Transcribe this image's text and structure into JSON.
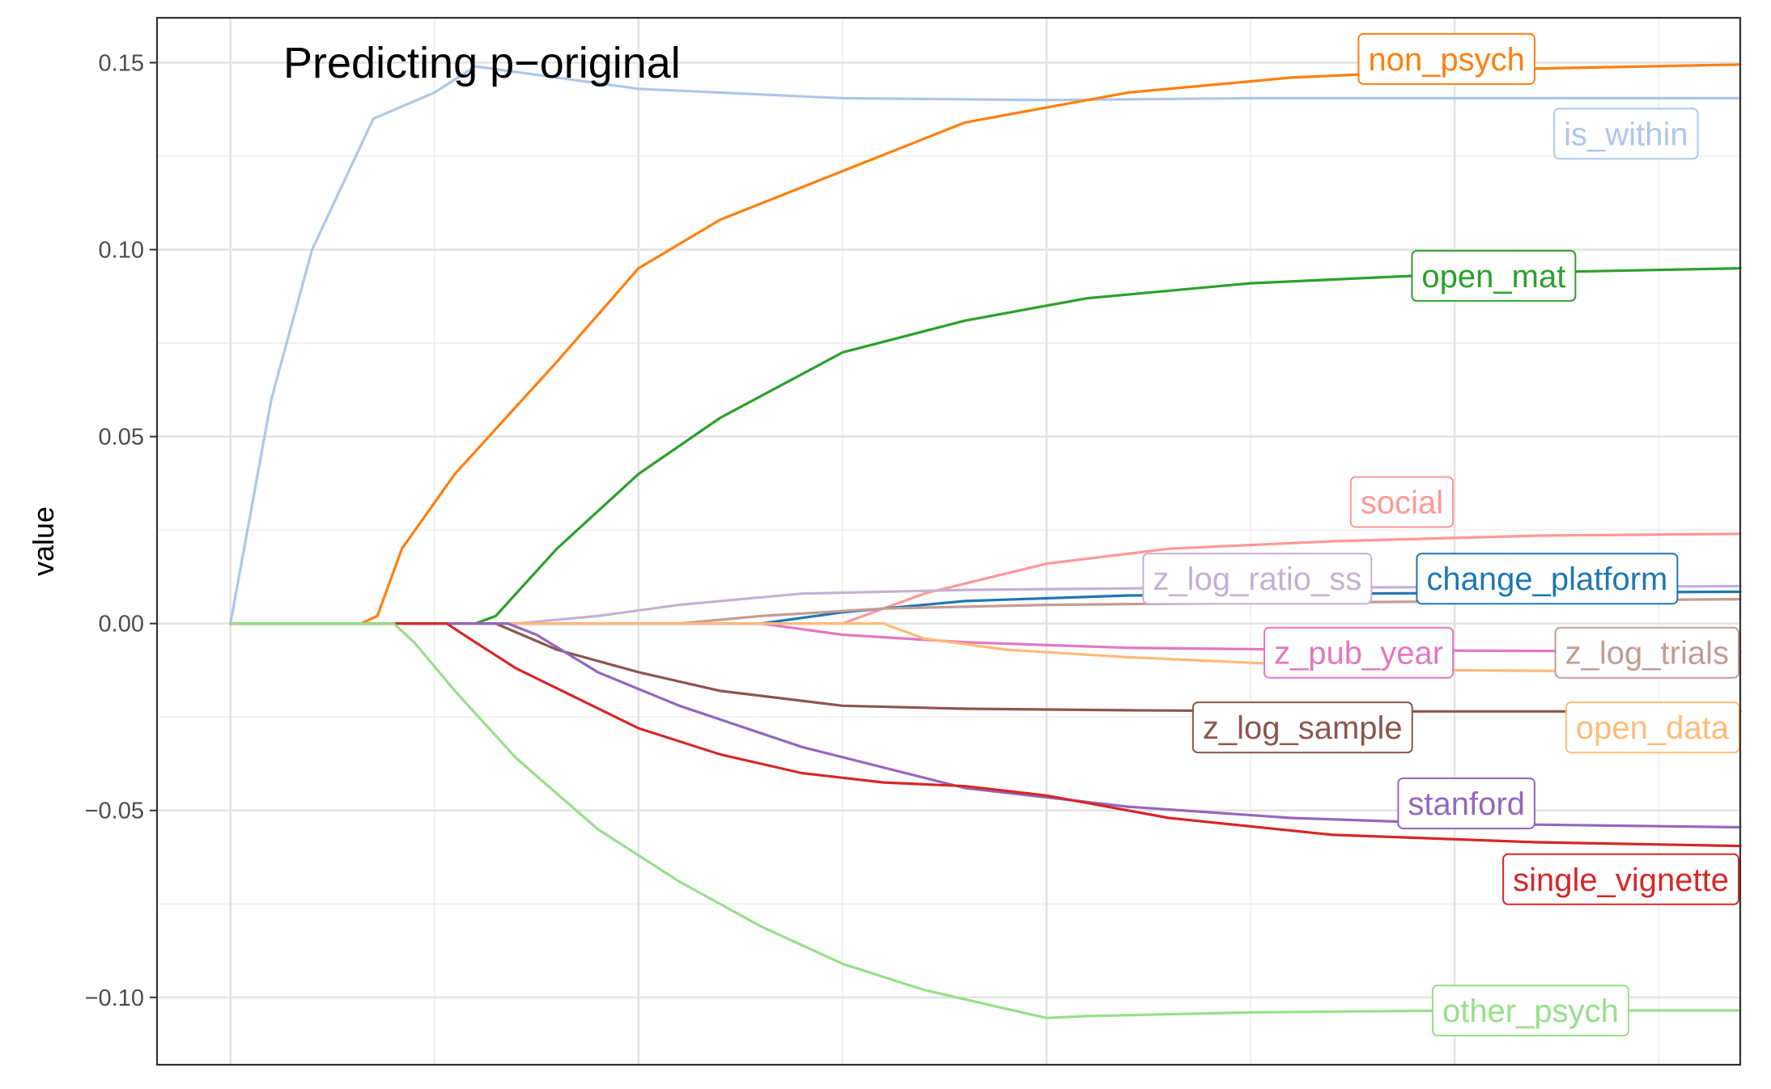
{
  "chart_data": {
    "type": "line",
    "title": "Predicting p−original",
    "xlabel": "",
    "ylabel": "value",
    "ylim": [
      -0.118,
      0.162
    ],
    "xlim": [
      -0.18,
      3.7
    ],
    "yticks": [
      {
        "value": 0.15,
        "label": "0.15"
      },
      {
        "value": 0.1,
        "label": "0.10"
      },
      {
        "value": 0.05,
        "label": "0.05"
      },
      {
        "value": 0.0,
        "label": "0.00"
      },
      {
        "value": -0.05,
        "label": "−0.05"
      },
      {
        "value": -0.1,
        "label": "−0.10"
      }
    ],
    "xgrid_major": [
      0,
      1,
      2,
      3,
      4
    ],
    "xgrid_minor": [
      0.5,
      1.5,
      2.5,
      3.5
    ],
    "grid": true,
    "legend": "direct labels at line ends",
    "series": [
      {
        "name": "is_within",
        "color": "#aec7e8",
        "points": [
          [
            0,
            0
          ],
          [
            0.1,
            0.06
          ],
          [
            0.2,
            0.1
          ],
          [
            0.35,
            0.135
          ],
          [
            0.5,
            0.142
          ],
          [
            0.6,
            0.149
          ],
          [
            0.8,
            0.146
          ],
          [
            1.0,
            0.143
          ],
          [
            1.5,
            0.1405
          ],
          [
            2.0,
            0.14
          ],
          [
            2.5,
            0.1405
          ],
          [
            3.0,
            0.1405
          ],
          [
            3.5,
            0.1405
          ],
          [
            3.7,
            0.1405
          ]
        ]
      },
      {
        "name": "non_psych",
        "color": "#ff7f0e",
        "points": [
          [
            0,
            0
          ],
          [
            0.32,
            0
          ],
          [
            0.36,
            0.002
          ],
          [
            0.42,
            0.02
          ],
          [
            0.55,
            0.04
          ],
          [
            0.8,
            0.07
          ],
          [
            1.0,
            0.095
          ],
          [
            1.2,
            0.108
          ],
          [
            1.5,
            0.121
          ],
          [
            1.8,
            0.134
          ],
          [
            2.2,
            0.142
          ],
          [
            2.6,
            0.146
          ],
          [
            3.0,
            0.148
          ],
          [
            3.7,
            0.1495
          ]
        ]
      },
      {
        "name": "open_mat",
        "color": "#2ca02c",
        "points": [
          [
            0,
            0
          ],
          [
            0.6,
            0
          ],
          [
            0.65,
            0.002
          ],
          [
            0.8,
            0.02
          ],
          [
            1.0,
            0.04
          ],
          [
            1.2,
            0.055
          ],
          [
            1.5,
            0.0725
          ],
          [
            1.8,
            0.081
          ],
          [
            2.1,
            0.087
          ],
          [
            2.5,
            0.091
          ],
          [
            3.0,
            0.0935
          ],
          [
            3.7,
            0.095
          ]
        ]
      },
      {
        "name": "social",
        "color": "#ff9896",
        "points": [
          [
            0,
            0
          ],
          [
            1.5,
            0
          ],
          [
            1.7,
            0.008
          ],
          [
            2.0,
            0.016
          ],
          [
            2.3,
            0.02
          ],
          [
            2.7,
            0.022
          ],
          [
            3.2,
            0.0235
          ],
          [
            3.7,
            0.024
          ]
        ]
      },
      {
        "name": "change_platform",
        "color": "#1f77b4",
        "points": [
          [
            0,
            0
          ],
          [
            1.3,
            0
          ],
          [
            1.5,
            0.003
          ],
          [
            1.8,
            0.006
          ],
          [
            2.2,
            0.0075
          ],
          [
            2.7,
            0.008
          ],
          [
            3.7,
            0.0085
          ]
        ]
      },
      {
        "name": "z_log_ratio_ss",
        "color": "#c5b0d5",
        "points": [
          [
            0,
            0
          ],
          [
            0.7,
            0
          ],
          [
            0.9,
            0.002
          ],
          [
            1.1,
            0.005
          ],
          [
            1.4,
            0.008
          ],
          [
            1.8,
            0.009
          ],
          [
            2.3,
            0.0095
          ],
          [
            3.7,
            0.01
          ]
        ]
      },
      {
        "name": "z_log_trials",
        "color": "#c49c94",
        "points": [
          [
            0,
            0
          ],
          [
            1.1,
            0
          ],
          [
            1.3,
            0.002
          ],
          [
            1.6,
            0.004
          ],
          [
            2.0,
            0.005
          ],
          [
            2.5,
            0.0055
          ],
          [
            3.7,
            0.0065
          ]
        ]
      },
      {
        "name": "z_pub_year",
        "color": "#e377c2",
        "points": [
          [
            0,
            0
          ],
          [
            1.3,
            0
          ],
          [
            1.5,
            -0.003
          ],
          [
            1.8,
            -0.005
          ],
          [
            2.2,
            -0.0065
          ],
          [
            2.8,
            -0.0072
          ],
          [
            3.7,
            -0.0075
          ]
        ]
      },
      {
        "name": "open_data",
        "color": "#ffbb78",
        "points": [
          [
            0,
            0
          ],
          [
            1.5,
            0
          ],
          [
            1.6,
            0
          ],
          [
            1.7,
            -0.004
          ],
          [
            1.9,
            -0.007
          ],
          [
            2.2,
            -0.009
          ],
          [
            2.6,
            -0.011
          ],
          [
            3.0,
            -0.0125
          ],
          [
            3.7,
            -0.013
          ]
        ]
      },
      {
        "name": "z_log_sample",
        "color": "#8c564b",
        "points": [
          [
            0,
            0
          ],
          [
            0.65,
            0
          ],
          [
            0.8,
            -0.007
          ],
          [
            1.0,
            -0.013
          ],
          [
            1.2,
            -0.018
          ],
          [
            1.5,
            -0.022
          ],
          [
            1.8,
            -0.0228
          ],
          [
            2.2,
            -0.0232
          ],
          [
            2.7,
            -0.0235
          ],
          [
            3.7,
            -0.0235
          ]
        ]
      },
      {
        "name": "stanford",
        "color": "#9467bd",
        "points": [
          [
            0,
            0
          ],
          [
            0.68,
            0
          ],
          [
            0.75,
            -0.003
          ],
          [
            0.9,
            -0.013
          ],
          [
            1.1,
            -0.022
          ],
          [
            1.4,
            -0.033
          ],
          [
            1.8,
            -0.044
          ],
          [
            2.2,
            -0.049
          ],
          [
            2.6,
            -0.052
          ],
          [
            3.0,
            -0.0535
          ],
          [
            3.7,
            -0.0545
          ]
        ]
      },
      {
        "name": "single_vignette",
        "color": "#d62728",
        "points": [
          [
            0,
            0
          ],
          [
            0.53,
            0
          ],
          [
            0.6,
            -0.005
          ],
          [
            0.7,
            -0.012
          ],
          [
            0.85,
            -0.02
          ],
          [
            1.0,
            -0.028
          ],
          [
            1.2,
            -0.035
          ],
          [
            1.4,
            -0.04
          ],
          [
            1.6,
            -0.0425
          ],
          [
            1.8,
            -0.0435
          ],
          [
            2.0,
            -0.046
          ],
          [
            2.3,
            -0.052
          ],
          [
            2.7,
            -0.0565
          ],
          [
            3.2,
            -0.0585
          ],
          [
            3.7,
            -0.0595
          ]
        ]
      },
      {
        "name": "other_psych",
        "color": "#98df8a",
        "points": [
          [
            0,
            0
          ],
          [
            0.4,
            0
          ],
          [
            0.45,
            -0.005
          ],
          [
            0.55,
            -0.018
          ],
          [
            0.7,
            -0.036
          ],
          [
            0.9,
            -0.055
          ],
          [
            1.1,
            -0.069
          ],
          [
            1.3,
            -0.081
          ],
          [
            1.5,
            -0.091
          ],
          [
            1.7,
            -0.098
          ],
          [
            1.9,
            -0.103
          ],
          [
            2.0,
            -0.1055
          ],
          [
            2.1,
            -0.105
          ],
          [
            2.5,
            -0.104
          ],
          [
            3.0,
            -0.1035
          ],
          [
            3.7,
            -0.1035
          ]
        ]
      }
    ],
    "labels": [
      {
        "series": "non_psych",
        "text": "non_psych",
        "anchor_x": 3.2,
        "anchor_y": 0.151
      },
      {
        "series": "is_within",
        "text": "is_within",
        "anchor_x": 3.6,
        "anchor_y": 0.131
      },
      {
        "series": "open_mat",
        "text": "open_mat",
        "anchor_x": 3.3,
        "anchor_y": 0.093
      },
      {
        "series": "social",
        "text": "social",
        "anchor_x": 3.0,
        "anchor_y": 0.0325
      },
      {
        "series": "change_platform",
        "text": "change_platform",
        "anchor_x": 3.55,
        "anchor_y": 0.012
      },
      {
        "series": "z_log_ratio_ss",
        "text": "z_log_ratio_ss",
        "anchor_x": 2.8,
        "anchor_y": 0.012
      },
      {
        "series": "z_pub_year",
        "text": "z_pub_year",
        "anchor_x": 3.0,
        "anchor_y": -0.0078
      },
      {
        "series": "z_log_trials",
        "text": "z_log_trials",
        "anchor_x": 3.7,
        "anchor_y": -0.0078
      },
      {
        "series": "z_log_sample",
        "text": "z_log_sample",
        "anchor_x": 2.9,
        "anchor_y": -0.0278
      },
      {
        "series": "open_data",
        "text": "open_data",
        "anchor_x": 3.7,
        "anchor_y": -0.0278
      },
      {
        "series": "stanford",
        "text": "stanford",
        "anchor_x": 3.2,
        "anchor_y": -0.0481
      },
      {
        "series": "single_vignette",
        "text": "single_vignette",
        "anchor_x": 3.7,
        "anchor_y": -0.0684
      },
      {
        "series": "other_psych",
        "text": "other_psych",
        "anchor_x": 3.43,
        "anchor_y": -0.1035
      }
    ]
  }
}
